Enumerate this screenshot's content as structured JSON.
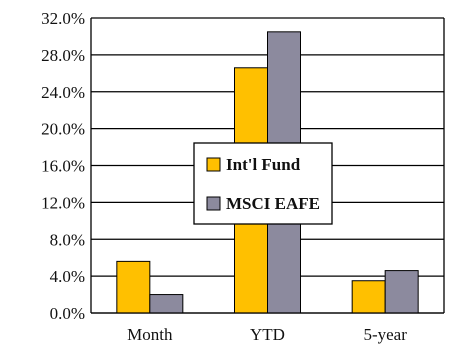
{
  "chart_data": {
    "type": "bar",
    "categories": [
      "Month",
      "YTD",
      "5-year"
    ],
    "series": [
      {
        "name": "Int'l Fund",
        "values": [
          5.6,
          26.6,
          3.5
        ],
        "color": "#FFC000"
      },
      {
        "name": "MSCI EAFE",
        "values": [
          2.0,
          30.5,
          4.6
        ],
        "color": "#8C8A9E"
      }
    ],
    "ylim": [
      0,
      32
    ],
    "yticks": [
      "0.0%",
      "4.0%",
      "8.0%",
      "12.0%",
      "16.0%",
      "20.0%",
      "24.0%",
      "28.0%",
      "32.0%"
    ],
    "grid": true,
    "legend_position": "center"
  }
}
